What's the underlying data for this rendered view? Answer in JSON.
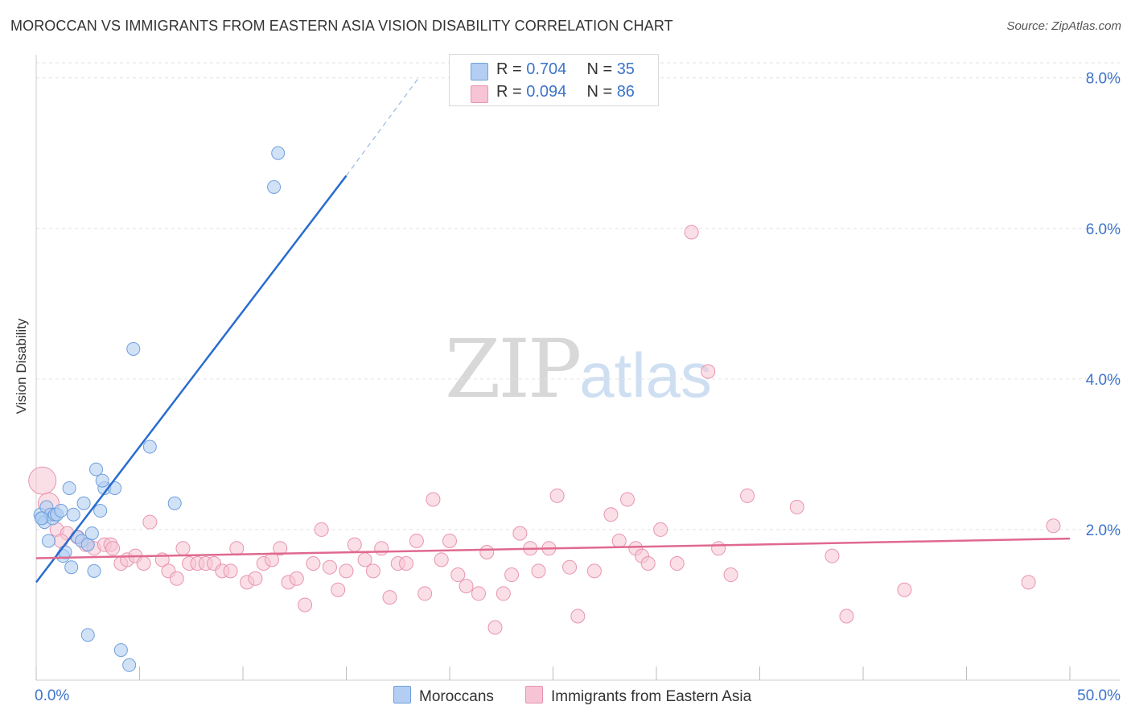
{
  "title": "MOROCCAN VS IMMIGRANTS FROM EASTERN ASIA VISION DISABILITY CORRELATION CHART",
  "source": "Source: ZipAtlas.com",
  "watermark": {
    "zip": "ZIP",
    "atlas": "atlas"
  },
  "colors": {
    "blue_fill": "#b3cef2",
    "blue_stroke": "#6f9fdc",
    "blue_line": "#2a6ccf",
    "pink_fill": "#f6c4d4",
    "pink_stroke": "#e994b0",
    "pink_line": "#e0698f",
    "tick_label": "#3d74c9"
  },
  "legend": {
    "rows": [
      {
        "r_label": "R = ",
        "r_value": "0.704",
        "n_label": "N = ",
        "n_value": "35"
      },
      {
        "r_label": "R = ",
        "r_value": "0.094",
        "n_label": "N = ",
        "n_value": "86"
      }
    ]
  },
  "chart_data": {
    "type": "scatter",
    "title": "MOROCCAN VS IMMIGRANTS FROM EASTERN ASIA VISION DISABILITY CORRELATION CHART",
    "xlabel": "",
    "ylabel": "Vision Disability",
    "xlim": [
      0,
      50
    ],
    "ylim": [
      0,
      8.2
    ],
    "x_tick_labels": [
      "0.0%",
      "50.0%"
    ],
    "y_ticks": [
      2,
      4,
      6,
      8
    ],
    "y_tick_labels": [
      "2.0%",
      "4.0%",
      "6.0%",
      "8.0%"
    ],
    "grid": true,
    "series": [
      {
        "name": "Moroccans",
        "points": [
          [
            0.2,
            2.2
          ],
          [
            0.3,
            2.15
          ],
          [
            0.4,
            2.1
          ],
          [
            0.5,
            2.3
          ],
          [
            0.6,
            1.85
          ],
          [
            0.7,
            2.2
          ],
          [
            0.8,
            2.15
          ],
          [
            0.9,
            2.2
          ],
          [
            1.0,
            2.2
          ],
          [
            1.2,
            2.25
          ],
          [
            1.3,
            1.65
          ],
          [
            1.4,
            1.7
          ],
          [
            1.6,
            2.55
          ],
          [
            1.7,
            1.5
          ],
          [
            1.8,
            2.2
          ],
          [
            2.0,
            1.9
          ],
          [
            2.2,
            1.85
          ],
          [
            2.3,
            2.35
          ],
          [
            2.5,
            1.8
          ],
          [
            2.5,
            0.6
          ],
          [
            2.7,
            1.95
          ],
          [
            2.8,
            1.45
          ],
          [
            2.9,
            2.8
          ],
          [
            3.1,
            2.25
          ],
          [
            3.3,
            2.55
          ],
          [
            3.2,
            2.65
          ],
          [
            3.8,
            2.55
          ],
          [
            4.1,
            0.4
          ],
          [
            4.5,
            0.2
          ],
          [
            4.7,
            4.4
          ],
          [
            5.5,
            3.1
          ],
          [
            6.7,
            2.35
          ],
          [
            11.5,
            6.55
          ],
          [
            11.7,
            7.0
          ],
          [
            0.25,
            2.15
          ]
        ],
        "trend": {
          "x": [
            0,
            15
          ],
          "y": [
            1.3,
            6.7
          ],
          "dashed_to": [
            18.5,
            8.0
          ]
        }
      },
      {
        "name": "Immigrants from Eastern Asia",
        "points": [
          [
            0.3,
            2.65
          ],
          [
            0.6,
            2.35
          ],
          [
            1.0,
            2.0
          ],
          [
            1.5,
            1.95
          ],
          [
            2.0,
            1.9
          ],
          [
            2.4,
            1.8
          ],
          [
            2.8,
            1.75
          ],
          [
            3.3,
            1.8
          ],
          [
            3.6,
            1.8
          ],
          [
            3.7,
            1.75
          ],
          [
            4.1,
            1.55
          ],
          [
            4.4,
            1.6
          ],
          [
            4.8,
            1.65
          ],
          [
            5.2,
            1.55
          ],
          [
            5.5,
            2.1
          ],
          [
            6.1,
            1.6
          ],
          [
            6.4,
            1.45
          ],
          [
            6.8,
            1.35
          ],
          [
            7.1,
            1.75
          ],
          [
            7.4,
            1.55
          ],
          [
            7.8,
            1.55
          ],
          [
            8.2,
            1.55
          ],
          [
            8.6,
            1.55
          ],
          [
            9.0,
            1.45
          ],
          [
            9.4,
            1.45
          ],
          [
            9.7,
            1.75
          ],
          [
            10.2,
            1.3
          ],
          [
            10.6,
            1.35
          ],
          [
            11.0,
            1.55
          ],
          [
            11.4,
            1.6
          ],
          [
            11.8,
            1.75
          ],
          [
            12.2,
            1.3
          ],
          [
            12.6,
            1.35
          ],
          [
            13.0,
            1.0
          ],
          [
            13.4,
            1.55
          ],
          [
            13.8,
            2.0
          ],
          [
            14.2,
            1.5
          ],
          [
            14.6,
            1.2
          ],
          [
            15.0,
            1.45
          ],
          [
            15.4,
            1.8
          ],
          [
            15.9,
            1.6
          ],
          [
            16.3,
            1.45
          ],
          [
            16.7,
            1.75
          ],
          [
            17.1,
            1.1
          ],
          [
            17.5,
            1.55
          ],
          [
            17.9,
            1.55
          ],
          [
            18.4,
            1.85
          ],
          [
            18.8,
            1.15
          ],
          [
            19.2,
            2.4
          ],
          [
            19.6,
            1.6
          ],
          [
            20.0,
            1.85
          ],
          [
            20.4,
            1.4
          ],
          [
            20.8,
            1.25
          ],
          [
            21.4,
            1.15
          ],
          [
            21.8,
            1.7
          ],
          [
            22.2,
            0.7
          ],
          [
            22.6,
            1.15
          ],
          [
            23.0,
            1.4
          ],
          [
            23.4,
            1.95
          ],
          [
            23.9,
            1.75
          ],
          [
            24.3,
            1.45
          ],
          [
            24.8,
            1.75
          ],
          [
            25.2,
            2.45
          ],
          [
            25.8,
            1.5
          ],
          [
            26.2,
            0.85
          ],
          [
            27.0,
            1.45
          ],
          [
            27.8,
            2.2
          ],
          [
            28.2,
            1.85
          ],
          [
            28.6,
            2.4
          ],
          [
            29.0,
            1.75
          ],
          [
            29.3,
            1.65
          ],
          [
            29.6,
            1.55
          ],
          [
            30.2,
            2.0
          ],
          [
            31.0,
            1.55
          ],
          [
            31.7,
            5.95
          ],
          [
            32.5,
            4.1
          ],
          [
            33.0,
            1.75
          ],
          [
            33.6,
            1.4
          ],
          [
            34.4,
            2.45
          ],
          [
            36.8,
            2.3
          ],
          [
            38.5,
            1.65
          ],
          [
            39.2,
            0.85
          ],
          [
            42.0,
            1.2
          ],
          [
            48.0,
            1.3
          ],
          [
            49.2,
            2.05
          ],
          [
            1.2,
            1.85
          ]
        ],
        "trend": {
          "x": [
            0,
            50
          ],
          "y": [
            1.62,
            1.88
          ]
        }
      }
    ]
  },
  "bottom_legend": [
    "Moroccans",
    "Immigrants from Eastern Asia"
  ]
}
